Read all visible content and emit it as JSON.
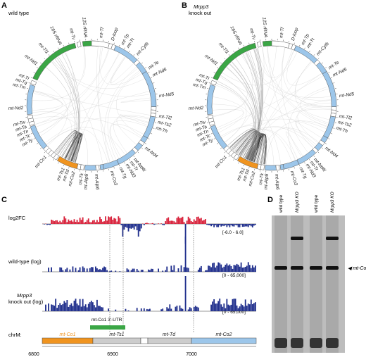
{
  "panels": {
    "A": {
      "letter": "A",
      "title": "wild type"
    },
    "B": {
      "letter": "B",
      "title_line1": "Mrpp3",
      "title_line2": "knock out"
    },
    "C": {
      "letter": "C"
    },
    "D": {
      "letter": "D"
    }
  },
  "genes": [
    {
      "name": "12S rRNA",
      "start": 352,
      "end": 367,
      "color": "#3aa645"
    },
    {
      "name": "mt-Tv",
      "start": 347,
      "end": 350,
      "color": "#ffffff"
    },
    {
      "name": "16S rRNA",
      "start": 295,
      "end": 345,
      "color": "#3aa645"
    },
    {
      "name": "mt-Tl1",
      "start": 290,
      "end": 293,
      "color": "#ffffff"
    },
    {
      "name": "mt-Nd1",
      "start": 262,
      "end": 289,
      "color": "#9cc6ea"
    },
    {
      "name": "mt-Ti",
      "start": 258,
      "end": 261,
      "color": "#ffffff"
    },
    {
      "name": "mt-Tq",
      "start": 255,
      "end": 258,
      "color": "#ffffff"
    },
    {
      "name": "mt-Tm",
      "start": 252,
      "end": 255,
      "color": "#ffffff"
    },
    {
      "name": "mt-Nd2",
      "start": 228,
      "end": 251,
      "color": "#9cc6ea"
    },
    {
      "name": "mt-Tw",
      "start": 225,
      "end": 228,
      "color": "#ffffff"
    },
    {
      "name": "mt-Ta",
      "start": 222,
      "end": 225,
      "color": "#ffffff"
    },
    {
      "name": "mt-Tn",
      "start": 219,
      "end": 222,
      "color": "#ffffff"
    },
    {
      "name": "mt-Tc",
      "start": 216,
      "end": 219,
      "color": "#ffffff"
    },
    {
      "name": "mt-Ty",
      "start": 213,
      "end": 216,
      "color": "#ffffff"
    },
    {
      "name": "mt-Co1",
      "start": 193,
      "end": 212,
      "color": "#f0941f"
    },
    {
      "name": "mt-Ts1",
      "start": 190,
      "end": 193,
      "color": "#ffffff"
    },
    {
      "name": "mt-Td",
      "start": 187,
      "end": 190,
      "color": "#ffffff"
    },
    {
      "name": "mt-Co2",
      "start": 176,
      "end": 186,
      "color": "#9cc6ea"
    },
    {
      "name": "mt-Tk",
      "start": 173,
      "end": 176,
      "color": "#ffffff"
    },
    {
      "name": "mt-Atp8",
      "start": 169,
      "end": 172,
      "color": "#9cc6ea"
    },
    {
      "name": "mt-Atp6",
      "start": 155,
      "end": 169,
      "color": "#9cc6ea"
    },
    {
      "name": "mt-Co3",
      "start": 137,
      "end": 155,
      "color": "#9cc6ea"
    },
    {
      "name": "mt-Tg",
      "start": 134,
      "end": 137,
      "color": "#ffffff"
    },
    {
      "name": "mt-Nd3",
      "start": 128,
      "end": 134,
      "color": "#9cc6ea"
    },
    {
      "name": "mt-Tr",
      "start": 125,
      "end": 128,
      "color": "#ffffff"
    },
    {
      "name": "mt-Nd4l",
      "start": 120,
      "end": 125,
      "color": "#9cc6ea"
    },
    {
      "name": "mt-Nd4",
      "start": 100,
      "end": 120,
      "color": "#9cc6ea"
    },
    {
      "name": "mt-Th",
      "start": 97,
      "end": 100,
      "color": "#ffffff"
    },
    {
      "name": "mt-Ts2",
      "start": 94,
      "end": 97,
      "color": "#ffffff"
    },
    {
      "name": "mt-Tl2",
      "start": 91,
      "end": 94,
      "color": "#ffffff"
    },
    {
      "name": "mt-Nd5",
      "start": 58,
      "end": 91,
      "color": "#9cc6ea"
    },
    {
      "name": "mt-Nd6",
      "start": 48,
      "end": 58,
      "color": "#9cc6ea"
    },
    {
      "name": "mt-Te",
      "start": 45,
      "end": 48,
      "color": "#ffffff"
    },
    {
      "name": "mt-Cytb",
      "start": 22,
      "end": 45,
      "color": "#9cc6ea"
    },
    {
      "name": "mt-Tt",
      "start": 19,
      "end": 22,
      "color": "#ffffff"
    },
    {
      "name": "mt-Tp",
      "start": 16,
      "end": 19,
      "color": "#ffffff"
    },
    {
      "name": "D-loop",
      "start": 0,
      "end": 16,
      "color": "#ffffff"
    }
  ],
  "circle_labels": [
    {
      "text": "12S rRNA",
      "angle": 355
    },
    {
      "text": "mt-Tv",
      "angle": 345
    },
    {
      "text": "mt-Tf",
      "angle": 8
    },
    {
      "text": "D-loop",
      "angle": 18
    },
    {
      "text": "mt-Tp",
      "angle": 27
    },
    {
      "text": "mt-Tt",
      "angle": 32
    },
    {
      "text": "mt-Cytb",
      "angle": 42
    },
    {
      "text": "mt-Te",
      "angle": 57
    },
    {
      "text": "mt-Nd6",
      "angle": 64
    },
    {
      "text": "mt-Nd5",
      "angle": 82
    },
    {
      "text": "mt-Tl2",
      "angle": 99
    },
    {
      "text": "mt-Ts2",
      "angle": 104
    },
    {
      "text": "mt-Th",
      "angle": 109
    },
    {
      "text": "mt-Nd4",
      "angle": 128
    },
    {
      "text": "mt-Nd4l",
      "angle": 141
    },
    {
      "text": "mt-Tr",
      "angle": 145
    },
    {
      "text": "mt-Nd3",
      "angle": 149
    },
    {
      "text": "mt-Tg",
      "angle": 155
    },
    {
      "text": "mt-Co3",
      "angle": 163
    },
    {
      "text": "mt-Atp6",
      "angle": 176
    },
    {
      "text": "mt-Atp8",
      "angle": 184
    },
    {
      "text": "mt-Tk",
      "angle": 188
    },
    {
      "text": "mt-Co2",
      "angle": 195
    },
    {
      "text": "mt-Td",
      "angle": 200
    },
    {
      "text": "mt-Ts1",
      "angle": 204
    },
    {
      "text": "mt-Co1",
      "angle": 222
    },
    {
      "text": "mt-Ty",
      "angle": 240
    },
    {
      "text": "mt-Tc",
      "angle": 244
    },
    {
      "text": "mt-Tn",
      "angle": 248
    },
    {
      "text": "mt-Ta",
      "angle": 252
    },
    {
      "text": "mt-Tw",
      "angle": 256
    },
    {
      "text": "mt-Nd2",
      "angle": 268
    },
    {
      "text": "mt-Tm",
      "angle": 285
    },
    {
      "text": "mt-Tq",
      "angle": 289
    },
    {
      "text": "mt-Ti",
      "angle": 293
    },
    {
      "text": "mt-Nd1",
      "angle": 307
    },
    {
      "text": "mt-Tl1",
      "angle": 320
    },
    {
      "text": "16S rRNA",
      "angle": 333
    }
  ],
  "track_panel": {
    "tracks": [
      {
        "name": "log2FC",
        "range": "[-6.0 - 6.0]"
      },
      {
        "name": "wild-type (log)",
        "range": "[0 - 65,000]"
      },
      {
        "name_line1": "Mrpp3",
        "name_line2": "knock out (log)",
        "range": "[0 - 65,000]"
      }
    ],
    "utr_label": "mt-Co1 3'-UTR",
    "chrom_label": "chrM:",
    "gene_labels": [
      "mt-Co1",
      "mt-Ts1",
      "mt-Td",
      "mt-Co2"
    ],
    "axis_ticks": [
      "6800",
      "6900",
      "7000"
    ]
  },
  "blot": {
    "lanes": [
      "wild type",
      "Mrpp3 KO",
      "wild type",
      "Mrpp3 KO"
    ],
    "band_label": "mt-Co1"
  },
  "colors": {
    "rRNA": "#3aa645",
    "protein": "#9cc6ea",
    "co1": "#f0941f",
    "up": "#d8213a",
    "down": "#1f2e8c"
  }
}
